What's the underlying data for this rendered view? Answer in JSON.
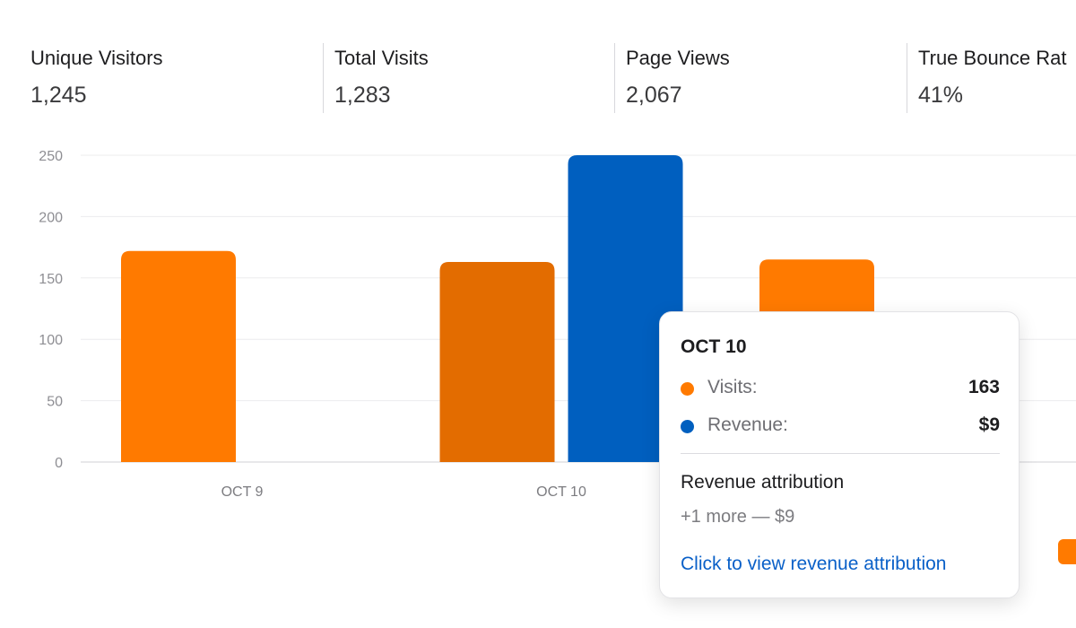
{
  "stats": [
    {
      "label": "Unique Visitors",
      "value": "1,245"
    },
    {
      "label": "Total Visits",
      "value": "1,283"
    },
    {
      "label": "Page Views",
      "value": "2,067"
    },
    {
      "label": "True Bounce Rat",
      "value": "41%"
    }
  ],
  "colors": {
    "visits": "#ff7a00",
    "visits_highlight": "#e36c00",
    "revenue": "#005fbf",
    "grid": "#ececee",
    "axis": "#d0d0d4"
  },
  "chart_data": {
    "type": "bar",
    "categories": [
      "OCT 9",
      "OCT 10",
      ""
    ],
    "series": [
      {
        "values": [
          172,
          163,
          165
        ]
      },
      {
        "values": [
          0,
          250,
          null
        ]
      }
    ],
    "yticks": [
      "0",
      "50",
      "100",
      "150",
      "200",
      "250"
    ],
    "ylim": [
      0,
      250
    ],
    "grid": true,
    "highlight_category": 1
  },
  "tooltip": {
    "title": "OCT 10",
    "rows": [
      {
        "key": "Visits:",
        "value": "163"
      },
      {
        "key": "Revenue:",
        "value": "$9"
      }
    ],
    "section_title": "Revenue attribution",
    "more": "+1 more — $9",
    "link": "Click to view revenue attribution"
  }
}
